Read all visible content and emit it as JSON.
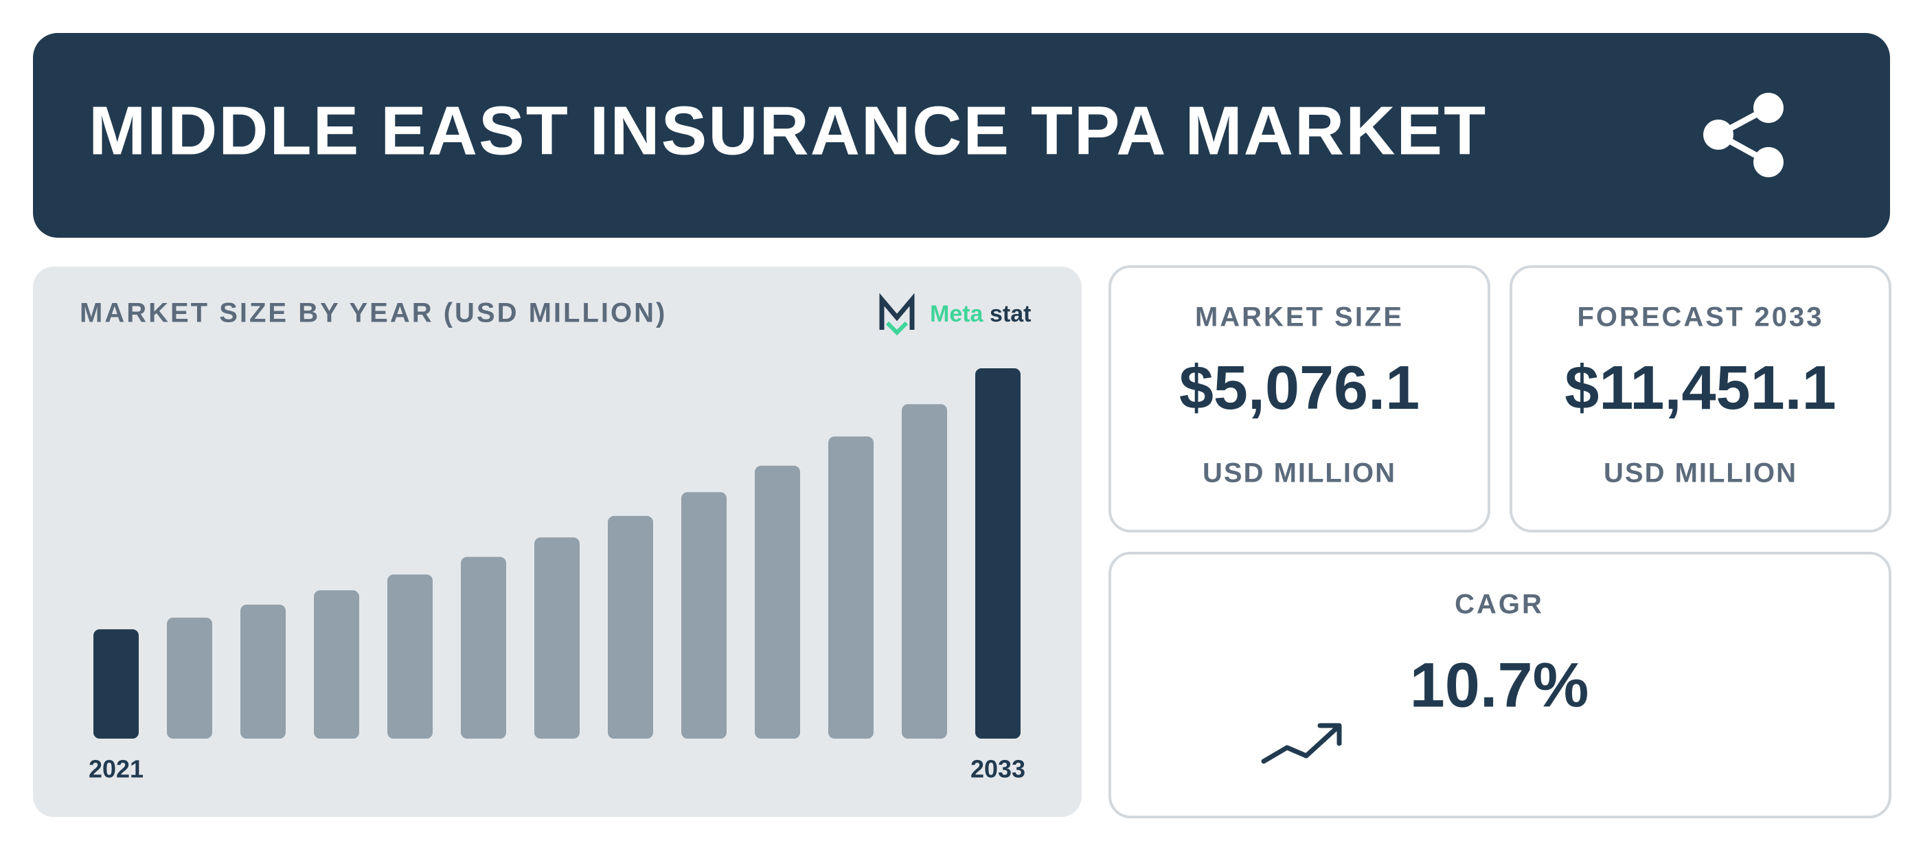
{
  "header": {
    "title": "MIDDLE EAST INSURANCE TPA MARKET"
  },
  "chart_data": {
    "type": "bar",
    "title": "MARKET SIZE BY YEAR (USD MILLION)",
    "logo_parts": [
      "Meta",
      "stat"
    ],
    "categories": [
      "2021",
      null,
      null,
      null,
      null,
      null,
      null,
      null,
      null,
      null,
      null,
      null,
      "2033"
    ],
    "values": [
      3380,
      3742,
      4142,
      4585,
      5076.1,
      5619,
      6221,
      6886,
      7623,
      8439,
      9342,
      10342,
      11451.1
    ],
    "colors": [
      "#213a4f",
      "#91a0ab",
      "#91a0ab",
      "#91a0ab",
      "#91a0ab",
      "#91a0ab",
      "#91a0ab",
      "#91a0ab",
      "#91a0ab",
      "#91a0ab",
      "#91a0ab",
      "#91a0ab",
      "#213a4f"
    ]
  },
  "cards": [
    {
      "label": "MARKET SIZE",
      "value": "$5,076.1",
      "unit": "USD MILLION"
    },
    {
      "label": "FORECAST 2033",
      "value": "$11,451.1",
      "unit": "USD MILLION"
    },
    {
      "label": "CAGR",
      "value": "10.7%"
    }
  ]
}
